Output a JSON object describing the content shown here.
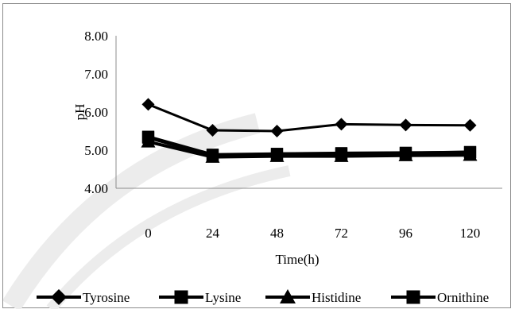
{
  "chart_data": {
    "type": "line",
    "title": "",
    "xlabel": "Time(h)",
    "ylabel": "pH",
    "x": [
      "0",
      "24",
      "48",
      "72",
      "96",
      "120"
    ],
    "ylim": [
      4.0,
      8.0
    ],
    "yticks": [
      "4.00",
      "5.00",
      "6.00",
      "7.00",
      "8.00"
    ],
    "grid": false,
    "legend_position": "bottom",
    "series": [
      {
        "name": "Tyrosine",
        "marker": "diamond",
        "values": [
          6.2,
          5.52,
          5.5,
          5.68,
          5.66,
          5.65
        ]
      },
      {
        "name": "Lysine",
        "marker": "square",
        "values": [
          5.35,
          4.88,
          4.9,
          4.92,
          4.93,
          4.94
        ]
      },
      {
        "name": "Histidine",
        "marker": "triangle",
        "values": [
          5.22,
          4.82,
          4.84,
          4.84,
          4.86,
          4.87
        ]
      },
      {
        "name": "Ornithine",
        "marker": "square",
        "values": [
          5.33,
          4.86,
          4.9,
          4.9,
          4.92,
          4.95
        ]
      }
    ],
    "line_color": "#000000"
  }
}
